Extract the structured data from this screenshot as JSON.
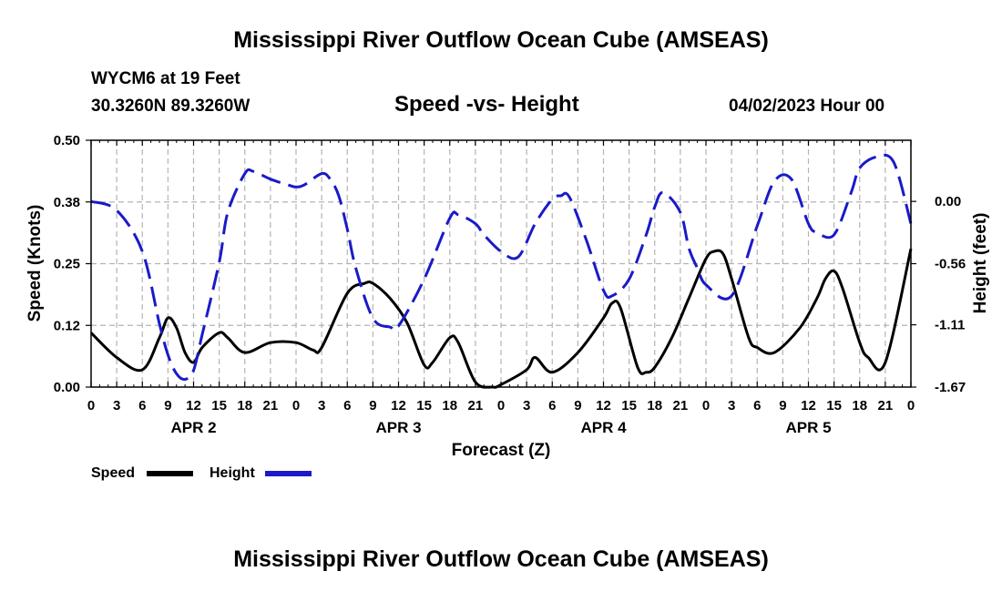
{
  "page": {
    "title": "Mississippi River Outflow Ocean Cube (AMSEAS)",
    "station": "WYCM6 at 19 Feet",
    "location": "30.3260N  89.3260W",
    "date": "04/02/2023 Hour 00",
    "footer_title": "Mississippi River Outflow Ocean Cube (AMSEAS)"
  },
  "colors": {
    "speed": "#000000",
    "height": "#1a1ac8",
    "grid": "#b4b4b4"
  },
  "chart_data": {
    "type": "line",
    "title": "Speed -vs- Height",
    "xlabel": "Forecast (Z)",
    "ylabel": "Speed (Knots)",
    "y2label": "Height (feet)",
    "xlim": [
      0,
      96
    ],
    "ylim": [
      0,
      0.5
    ],
    "y2lim": [
      -1.67,
      0.55
    ],
    "y_ticks": [
      "0.00",
      "0.12",
      "0.25",
      "0.38",
      "0.50"
    ],
    "y_tick_values": [
      0,
      0.125,
      0.25,
      0.375,
      0.5
    ],
    "y2_ticks": [
      "0.00",
      "-0.56",
      "-1.11",
      "-1.67"
    ],
    "y2_tick_values": [
      0,
      -0.56,
      -1.11,
      -1.67
    ],
    "x_ticks": [
      "0",
      "3",
      "6",
      "9",
      "12",
      "15",
      "18",
      "21",
      "0",
      "3",
      "6",
      "9",
      "12",
      "15",
      "18",
      "21",
      "0",
      "3",
      "6",
      "9",
      "12",
      "15",
      "18",
      "21",
      "0",
      "3",
      "6",
      "9",
      "12",
      "15",
      "18",
      "21",
      "0"
    ],
    "x_tick_values": [
      0,
      3,
      6,
      9,
      12,
      15,
      18,
      21,
      24,
      27,
      30,
      33,
      36,
      39,
      42,
      45,
      48,
      51,
      54,
      57,
      60,
      63,
      66,
      69,
      72,
      75,
      78,
      81,
      84,
      87,
      90,
      93,
      96
    ],
    "day_labels": [
      {
        "label": "APR 2",
        "x": 12
      },
      {
        "label": "APR 3",
        "x": 36
      },
      {
        "label": "APR 4",
        "x": 60
      },
      {
        "label": "APR 5",
        "x": 84
      }
    ],
    "grid": true,
    "legend": {
      "position": "bottom-left",
      "speed_label": "Speed",
      "height_label": "Height"
    },
    "series": [
      {
        "name": "Speed",
        "axis": "left",
        "style": "solid",
        "x": [
          0,
          3,
          6,
          8,
          9,
          10,
          11,
          12,
          13,
          15,
          16,
          18,
          21,
          24,
          26,
          27,
          30,
          32,
          33,
          35,
          37,
          39,
          40,
          42,
          43,
          45,
          47,
          48,
          51,
          52,
          54,
          57,
          60,
          61,
          62,
          64,
          65,
          66,
          68,
          70,
          72,
          73,
          74,
          75,
          77,
          78,
          80,
          83,
          85,
          86,
          87,
          88,
          90,
          91,
          93,
          96
        ],
        "values": [
          0.11,
          0.06,
          0.035,
          0.1,
          0.14,
          0.12,
          0.07,
          0.05,
          0.08,
          0.11,
          0.1,
          0.07,
          0.09,
          0.09,
          0.075,
          0.08,
          0.19,
          0.21,
          0.21,
          0.18,
          0.13,
          0.045,
          0.05,
          0.1,
          0.09,
          0.01,
          0.0,
          0.005,
          0.035,
          0.06,
          0.03,
          0.07,
          0.14,
          0.17,
          0.16,
          0.04,
          0.03,
          0.04,
          0.1,
          0.18,
          0.26,
          0.275,
          0.27,
          0.22,
          0.1,
          0.08,
          0.07,
          0.12,
          0.18,
          0.22,
          0.235,
          0.2,
          0.09,
          0.06,
          0.05,
          0.28
        ]
      },
      {
        "name": "Height",
        "axis": "right",
        "style": "dashed",
        "x": [
          0,
          3,
          6,
          8,
          9,
          10,
          11,
          12,
          13,
          15,
          16,
          18,
          19,
          21,
          23,
          24,
          25,
          27,
          28,
          29,
          30,
          31,
          33,
          35,
          36,
          39,
          42,
          43,
          45,
          46,
          48,
          50,
          52,
          54,
          55,
          56,
          58,
          60,
          61,
          63,
          65,
          66,
          67,
          69,
          70,
          71,
          72,
          75,
          78,
          80,
          82,
          84,
          85,
          87,
          89,
          90,
          92,
          94,
          96
        ],
        "values": [
          0.0,
          -0.08,
          -0.45,
          -1.1,
          -1.38,
          -1.55,
          -1.6,
          -1.52,
          -1.2,
          -0.55,
          -0.1,
          0.25,
          0.27,
          0.2,
          0.15,
          0.13,
          0.15,
          0.25,
          0.2,
          0.05,
          -0.25,
          -0.6,
          -1.05,
          -1.13,
          -1.12,
          -0.7,
          -0.15,
          -0.12,
          -0.2,
          -0.3,
          -0.45,
          -0.5,
          -0.2,
          0.02,
          0.05,
          0.04,
          -0.35,
          -0.8,
          -0.85,
          -0.7,
          -0.3,
          -0.05,
          0.08,
          -0.1,
          -0.42,
          -0.6,
          -0.75,
          -0.85,
          -0.22,
          0.18,
          0.2,
          -0.2,
          -0.28,
          -0.3,
          0.08,
          0.3,
          0.4,
          0.35,
          -0.2
        ]
      }
    ]
  }
}
